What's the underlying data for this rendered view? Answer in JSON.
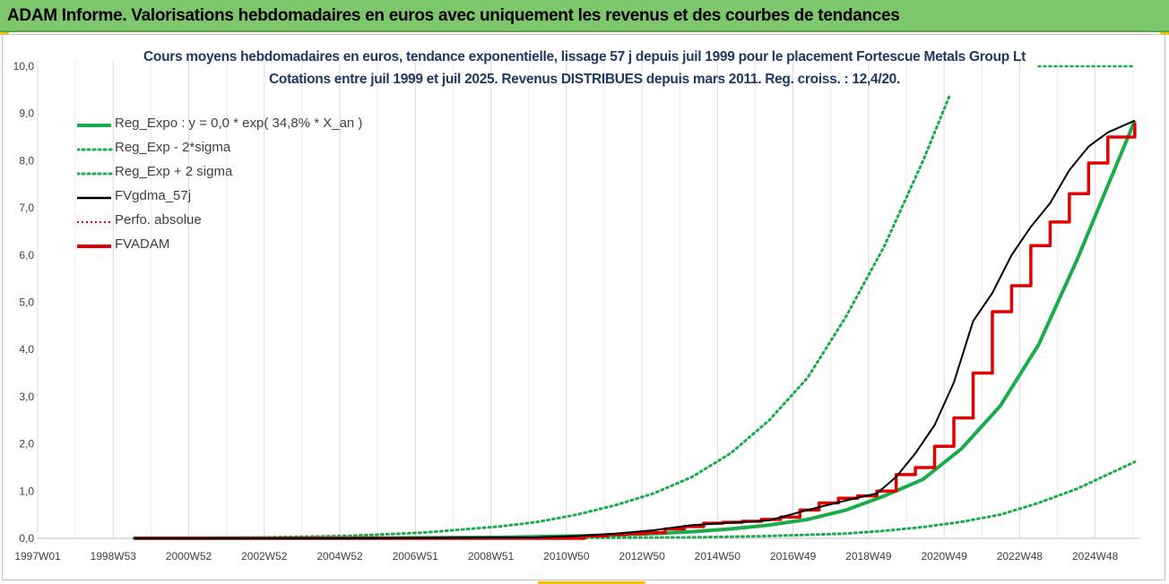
{
  "header": {
    "title": "ADAM Informe. Valorisations hebdomadaires en euros avec uniquement les revenus et des courbes de tendances"
  },
  "colors": {
    "banner": "#7dc66b",
    "trend": "#1aab4b",
    "fv": "#000000",
    "adam": "#e00000",
    "title": "#1f3864"
  },
  "chart_data": {
    "type": "line",
    "title": "Cours moyens hebdomadaires en euros, tendance exponentielle, lissage 57 j depuis juil 1999 pour le placement Fortescue Metals Group Lt",
    "subtitle": "Cotations entre juil 1999 et juil 2025.  Revenus DISTRIBUES depuis mars 2011. Reg. croiss. : 12,4/20.",
    "xlabel": "",
    "ylabel": "",
    "x_ticks": [
      "1997W01",
      "1998W53",
      "2000W52",
      "2002W52",
      "2004W52",
      "2006W51",
      "2008W51",
      "2010W50",
      "2012W50",
      "2014W50",
      "2016W49",
      "2018W49",
      "2020W49",
      "2022W48",
      "2024W48"
    ],
    "x_range": [
      1997.0,
      2025.55
    ],
    "ylim": [
      0,
      10
    ],
    "y_ticks": [
      "0,0",
      "1,0",
      "2,0",
      "3,0",
      "4,0",
      "5,0",
      "6,0",
      "7,0",
      "8,0",
      "9,0",
      "10,0"
    ],
    "grid": "vertical",
    "legend_position": "top-left",
    "series": [
      {
        "name": "Reg_Expo : y = 0,0 * exp( 34,8% *  X_an )",
        "style": "solid-thick",
        "color": "#1aab4b",
        "x": [
          1999.5,
          2003,
          2006,
          2009,
          2011,
          2012,
          2013,
          2014,
          2015,
          2016,
          2017,
          2018,
          2019,
          2020,
          2021,
          2022,
          2023,
          2024,
          2025.5
        ],
        "y": [
          0.001,
          0.003,
          0.007,
          0.02,
          0.05,
          0.07,
          0.1,
          0.14,
          0.2,
          0.28,
          0.4,
          0.6,
          0.9,
          1.25,
          1.9,
          2.8,
          4.1,
          5.9,
          8.85
        ]
      },
      {
        "name": "Reg_Exp - 2*sigma",
        "style": "dotted",
        "color": "#1aab4b",
        "x": [
          1999.5,
          2005,
          2010,
          2014,
          2016,
          2018,
          2019,
          2020,
          2021,
          2022,
          2023,
          2024,
          2025.5
        ],
        "y": [
          0.0,
          0.0,
          0.005,
          0.02,
          0.05,
          0.1,
          0.16,
          0.24,
          0.35,
          0.5,
          0.75,
          1.05,
          1.62
        ]
      },
      {
        "name": "Reg_Exp + 2 sigma",
        "style": "dotted",
        "color": "#1aab4b",
        "x": [
          1999.5,
          2003,
          2005,
          2007,
          2009,
          2010,
          2011,
          2012,
          2013,
          2014,
          2015,
          2016,
          2017,
          2018,
          2019,
          2020,
          2020.7
        ],
        "y": [
          0.005,
          0.02,
          0.05,
          0.12,
          0.25,
          0.35,
          0.5,
          0.7,
          0.95,
          1.3,
          1.8,
          2.5,
          3.4,
          4.7,
          6.2,
          8.0,
          9.4
        ]
      },
      {
        "name": "FVgdma_57j",
        "style": "solid",
        "color": "#000000",
        "x": [
          1999.5,
          2005,
          2010,
          2011,
          2012,
          2013,
          2014,
          2015,
          2016,
          2017,
          2018,
          2018.8,
          2019.3,
          2019.8,
          2020.3,
          2020.8,
          2021.3,
          2021.8,
          2022.3,
          2022.8,
          2023.3,
          2023.8,
          2024.3,
          2024.8,
          2025.5
        ],
        "y": [
          0.0,
          0.0,
          0.02,
          0.05,
          0.1,
          0.17,
          0.28,
          0.33,
          0.38,
          0.6,
          0.8,
          0.95,
          1.3,
          1.8,
          2.4,
          3.3,
          4.6,
          5.2,
          6.0,
          6.6,
          7.1,
          7.8,
          8.3,
          8.6,
          8.85
        ]
      },
      {
        "name": "Perfo. absolue",
        "style": "dotted",
        "color": "#e00000",
        "x": [],
        "y": []
      },
      {
        "name": "FVADAM",
        "style": "step-thick",
        "color": "#e00000",
        "x": [
          1999.5,
          2011.2,
          2011.8,
          2012.3,
          2012.8,
          2013.3,
          2013.8,
          2014.3,
          2014.8,
          2015.3,
          2015.8,
          2016.3,
          2016.8,
          2017.3,
          2017.8,
          2018.3,
          2018.8,
          2019.3,
          2019.8,
          2020.3,
          2020.8,
          2021.3,
          2021.8,
          2022.3,
          2022.8,
          2023.3,
          2023.8,
          2024.3,
          2024.8,
          2025.5
        ],
        "y": [
          0.0,
          0.05,
          0.08,
          0.1,
          0.12,
          0.2,
          0.25,
          0.32,
          0.34,
          0.36,
          0.4,
          0.45,
          0.6,
          0.75,
          0.85,
          0.9,
          1.0,
          1.35,
          1.5,
          1.95,
          2.55,
          3.5,
          4.8,
          5.35,
          6.2,
          6.7,
          7.3,
          7.95,
          8.5,
          8.8
        ]
      }
    ],
    "reference_lines": [
      {
        "y": 10.0,
        "x_from": 2023.0,
        "x_to": 2025.5,
        "style": "dotted",
        "color": "#1aab4b"
      }
    ]
  }
}
